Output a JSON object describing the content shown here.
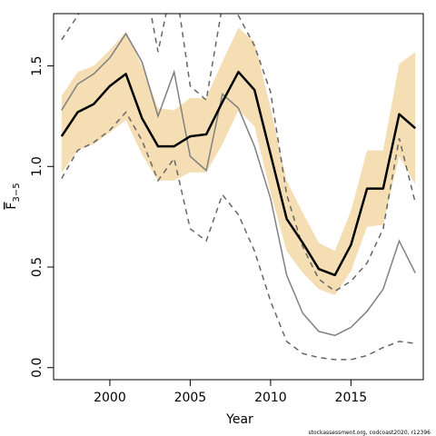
{
  "chart_data": {
    "type": "line",
    "xlabel": "Year",
    "ylabel": {
      "main": "F",
      "sub": "3−5"
    },
    "xlim": [
      1996.5,
      2019.5
    ],
    "ylim": [
      -0.06,
      1.76
    ],
    "xticks": [
      2000,
      2005,
      2010,
      2015
    ],
    "yticks": [
      0.0,
      0.5,
      1.0,
      1.5
    ],
    "ytick_labels": [
      "0.0",
      "0.5",
      "1.0",
      "1.5"
    ],
    "grid": false,
    "legend": "none",
    "colors": {
      "band": "#f5deb3",
      "main": "#000000",
      "retro": "#808080",
      "retro_ci": "#666666"
    },
    "x": [
      1997,
      1998,
      1999,
      2000,
      2001,
      2002,
      2003,
      2004,
      2005,
      2006,
      2007,
      2008,
      2009,
      2010,
      2011,
      2012,
      2013,
      2014,
      2015,
      2016,
      2017,
      2018,
      2019
    ],
    "band_upper": [
      1.35,
      1.47,
      1.5,
      1.58,
      1.67,
      1.5,
      1.29,
      1.28,
      1.34,
      1.34,
      1.52,
      1.69,
      1.62,
      1.29,
      0.93,
      0.77,
      0.62,
      0.58,
      0.78,
      1.08,
      1.08,
      1.51,
      1.57
    ],
    "band_lower": [
      0.97,
      1.08,
      1.11,
      1.17,
      1.23,
      1.06,
      0.93,
      0.93,
      0.97,
      0.97,
      1.11,
      1.28,
      1.2,
      0.87,
      0.58,
      0.47,
      0.39,
      0.36,
      0.48,
      0.7,
      0.71,
      1.05,
      0.91
    ],
    "estimate": [
      1.15,
      1.27,
      1.31,
      1.4,
      1.46,
      1.24,
      1.1,
      1.1,
      1.15,
      1.16,
      1.32,
      1.47,
      1.38,
      1.06,
      0.74,
      0.62,
      0.49,
      0.46,
      0.61,
      0.89,
      0.89,
      1.26,
      1.19
    ],
    "retro_estimate": [
      1.28,
      1.41,
      1.46,
      1.54,
      1.66,
      1.52,
      1.25,
      1.47,
      1.05,
      0.98,
      1.36,
      1.29,
      1.1,
      0.84,
      0.46,
      0.27,
      0.18,
      0.16,
      0.2,
      0.28,
      0.39,
      0.63,
      0.47
    ],
    "retro_upper": [
      1.63,
      1.75,
      1.9,
      1.98,
      2.05,
      2.0,
      1.57,
      1.95,
      1.4,
      1.33,
      1.8,
      1.75,
      1.6,
      1.37,
      0.86,
      0.6,
      0.44,
      0.38,
      0.43,
      0.52,
      0.69,
      1.14,
      0.82
    ],
    "retro_lower": [
      0.94,
      1.08,
      1.12,
      1.18,
      1.27,
      1.13,
      0.93,
      1.04,
      0.69,
      0.63,
      0.86,
      0.76,
      0.58,
      0.33,
      0.13,
      0.07,
      0.05,
      0.04,
      0.04,
      0.06,
      0.1,
      0.13,
      0.12
    ]
  },
  "footer_text": "stockassessment.org, codcoast2020, r12396"
}
